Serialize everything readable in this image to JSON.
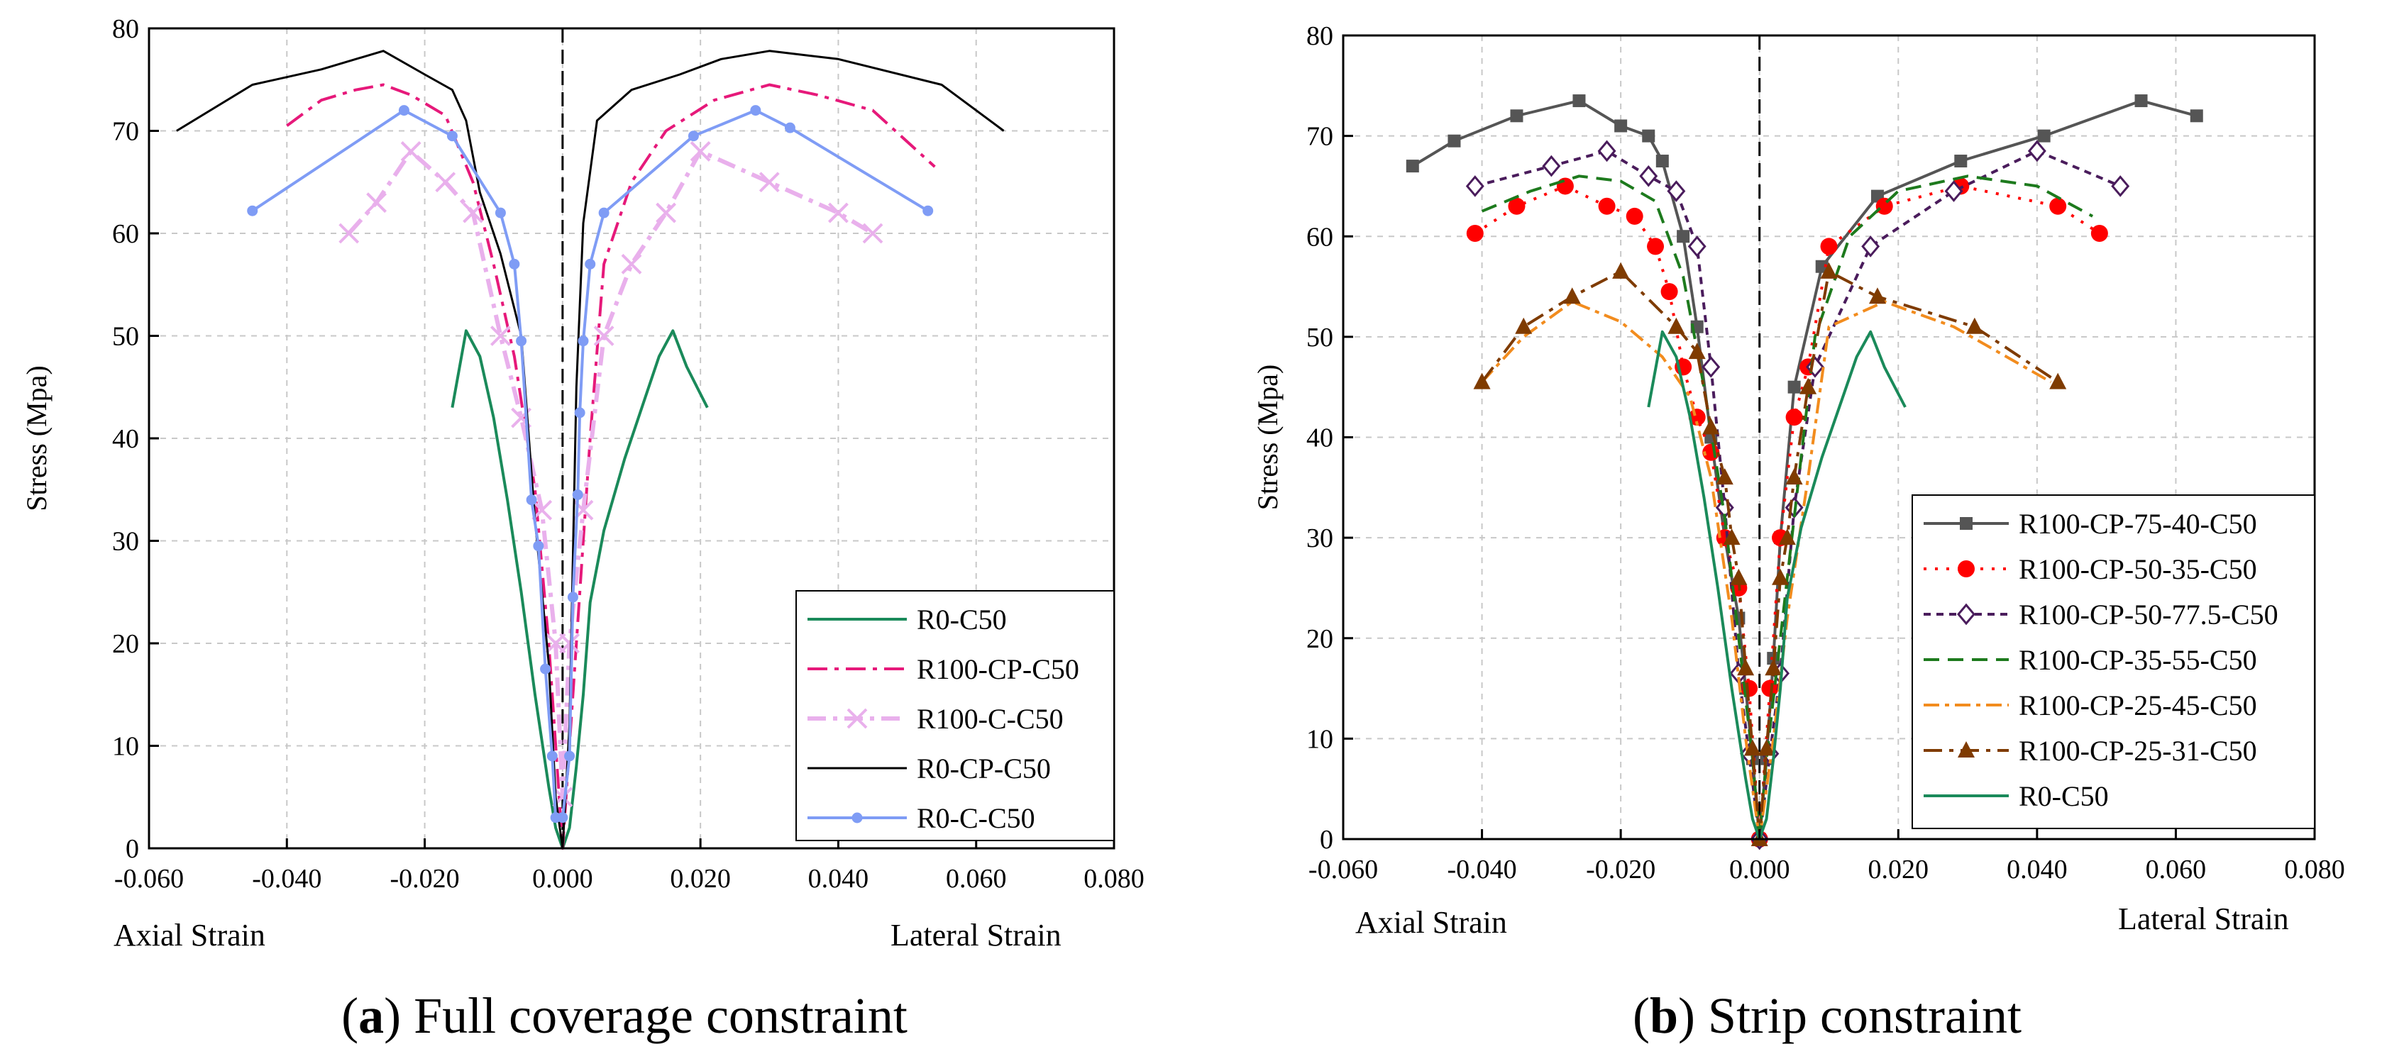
{
  "chart_data": [
    {
      "type": "line",
      "caption_letter": "a",
      "caption_text": ") Full coverage constraint",
      "caption_open": "(",
      "xlabel_left": "Axial Strain",
      "xlabel_right": "Lateral Strain",
      "ylabel": "Stress (Mpa)",
      "xlim": [
        -0.06,
        0.08
      ],
      "ylim": [
        0,
        80
      ],
      "xticks": [
        "-0.060",
        "-0.040",
        "-0.020",
        "0.000",
        "0.020",
        "0.040",
        "0.060",
        "0.080"
      ],
      "yticks": [
        "0",
        "10",
        "20",
        "30",
        "40",
        "50",
        "60",
        "70",
        "80"
      ],
      "series": [
        {
          "name": "R0-C50",
          "color": "#1a8a5a",
          "dash": "",
          "marker": "none",
          "x": [
            -0.016,
            -0.014,
            -0.012,
            -0.01,
            -0.008,
            -0.006,
            -0.004,
            -0.002,
            -0.001,
            0,
            0.001,
            0.002,
            0.003,
            0.004,
            0.006,
            0.009,
            0.012,
            0.014,
            0.016,
            0.018,
            0.021
          ],
          "y": [
            43,
            50.5,
            48,
            42,
            34,
            25,
            15,
            6,
            2,
            0,
            2,
            8,
            15,
            24,
            31,
            38,
            44,
            48,
            50.5,
            47,
            43
          ]
        },
        {
          "name": "R100-CP-C50",
          "color": "#e6197a",
          "dash": "28,10,6,10",
          "marker": "none",
          "x": [
            -0.04,
            -0.035,
            -0.03,
            -0.026,
            -0.022,
            -0.017,
            -0.013,
            -0.01,
            -0.007,
            -0.004,
            -0.002,
            0,
            0.002,
            0.004,
            0.006,
            0.01,
            0.015,
            0.022,
            0.03,
            0.037,
            0.045,
            0.054
          ],
          "y": [
            70.5,
            73,
            74,
            74.5,
            73.5,
            71.5,
            65,
            57,
            48,
            35,
            20,
            0,
            20,
            40,
            57,
            65,
            70,
            73,
            74.5,
            73.5,
            72,
            66.5
          ]
        },
        {
          "name": "R100-C-C50",
          "color": "#e9b0ec",
          "dash": "26,10,6,10",
          "marker": "x",
          "width": 6,
          "x": [
            -0.031,
            -0.027,
            -0.022,
            -0.017,
            -0.013,
            -0.009,
            -0.006,
            -0.003,
            -0.001,
            0,
            0.001,
            0.003,
            0.006,
            0.01,
            0.015,
            0.02,
            0.03,
            0.04,
            0.045
          ],
          "y": [
            60,
            63,
            68,
            65,
            62,
            50,
            42,
            33,
            20,
            5,
            20,
            33,
            50,
            57,
            62,
            68,
            65,
            62,
            60
          ]
        },
        {
          "name": "R0-CP-C50",
          "color": "#000000",
          "dash": "",
          "marker": "none",
          "width": 3,
          "x": [
            -0.056,
            -0.045,
            -0.035,
            -0.026,
            -0.02,
            -0.016,
            -0.014,
            -0.012,
            -0.009,
            -0.006,
            -0.004,
            -0.002,
            -0.001,
            0,
            0.001,
            0.002,
            0.003,
            0.005,
            0.01,
            0.017,
            0.023,
            0.03,
            0.04,
            0.055,
            0.064
          ],
          "y": [
            70,
            74.5,
            76,
            77.8,
            75.5,
            74,
            71,
            64,
            58,
            50,
            32,
            18,
            5,
            0,
            12,
            45,
            61,
            71,
            74,
            75.5,
            77,
            77.8,
            77,
            74.5,
            70
          ]
        },
        {
          "name": "R0-C-C50",
          "color": "#7f9cf5",
          "dash": "",
          "marker": "circle",
          "x": [
            -0.045,
            -0.023,
            -0.016,
            -0.009,
            -0.007,
            -0.006,
            -0.0045,
            -0.0035,
            -0.0025,
            -0.0015,
            -0.001,
            0,
            0.001,
            0.0015,
            0.0022,
            0.0025,
            0.003,
            0.004,
            0.006,
            0.019,
            0.028,
            0.033,
            0.053
          ],
          "y": [
            62.2,
            72,
            69.5,
            62,
            57,
            49.5,
            34,
            29.5,
            17.5,
            9,
            3,
            3,
            9,
            24.5,
            34.5,
            42.5,
            49.5,
            57,
            62,
            69.5,
            72,
            70.3,
            62.2
          ]
        }
      ]
    },
    {
      "type": "line",
      "caption_letter": "b",
      "caption_text": ") Strip constraint",
      "caption_open": "(",
      "xlabel_left": "Axial Strain",
      "xlabel_right": "Lateral Strain",
      "ylabel": "Stress (Mpa)",
      "xlim": [
        -0.06,
        0.08
      ],
      "ylim": [
        0,
        80
      ],
      "xticks": [
        "-0.060",
        "-0.040",
        "-0.020",
        "0.000",
        "0.020",
        "0.040",
        "0.060",
        "0.080"
      ],
      "yticks": [
        "0",
        "10",
        "20",
        "30",
        "40",
        "50",
        "60",
        "70",
        "80"
      ],
      "series": [
        {
          "name": "R100-CP-75-40-C50",
          "color": "#555555",
          "dash": "",
          "marker": "square",
          "x": [
            -0.05,
            -0.044,
            -0.035,
            -0.026,
            -0.02,
            -0.016,
            -0.014,
            -0.011,
            -0.009,
            -0.007,
            -0.005,
            -0.003,
            -0.002,
            -0.001,
            0,
            0.001,
            0.002,
            0.003,
            0.005,
            0.009,
            0.017,
            0.029,
            0.041,
            0.055,
            0.063
          ],
          "y": [
            67,
            69.5,
            72,
            73.5,
            71,
            70,
            67.5,
            60,
            51,
            40,
            30,
            22,
            15,
            8,
            0,
            8,
            18,
            30,
            45,
            57,
            64,
            67.5,
            70,
            73.5,
            72
          ]
        },
        {
          "name": "R100-CP-50-35-C50",
          "color": "#ff0000",
          "dash": "4,12",
          "marker": "dot",
          "x": [
            -0.041,
            -0.035,
            -0.028,
            -0.022,
            -0.018,
            -0.015,
            -0.013,
            -0.011,
            -0.009,
            -0.007,
            -0.005,
            -0.003,
            -0.0015,
            0,
            0.0015,
            0.003,
            0.005,
            0.007,
            0.01,
            0.018,
            0.029,
            0.043,
            0.049
          ],
          "y": [
            60.3,
            63,
            65,
            63,
            62,
            59,
            54.5,
            47,
            42,
            38.5,
            30,
            25,
            15,
            0,
            15,
            30,
            42,
            47,
            59,
            63,
            65,
            63,
            60.3
          ]
        },
        {
          "name": "R100-CP-50-77.5-C50",
          "color": "#4a1c5c",
          "dash": "10,8",
          "marker": "diamond",
          "x": [
            -0.041,
            -0.03,
            -0.022,
            -0.016,
            -0.012,
            -0.009,
            -0.007,
            -0.005,
            -0.003,
            -0.0015,
            0,
            0.0015,
            0.003,
            0.005,
            0.008,
            0.016,
            0.028,
            0.04,
            0.052
          ],
          "y": [
            65,
            67,
            68.5,
            66,
            64.5,
            59,
            47,
            33,
            16.5,
            8.5,
            0,
            8.5,
            16.5,
            33,
            47,
            59,
            64.5,
            68.5,
            65
          ]
        },
        {
          "name": "R100-CP-35-55-C50",
          "color": "#1d7a1d",
          "dash": "22,12",
          "marker": "none",
          "x": [
            -0.04,
            -0.033,
            -0.026,
            -0.02,
            -0.015,
            -0.011,
            -0.008,
            -0.005,
            -0.003,
            -0.001,
            0,
            0.001,
            0.003,
            0.005,
            0.008,
            0.013,
            0.02,
            0.03,
            0.04,
            0.048
          ],
          "y": [
            62.5,
            64.5,
            66,
            65.5,
            63.5,
            56,
            45,
            32,
            20,
            8,
            0,
            8,
            20,
            32,
            50,
            60,
            64.5,
            66,
            65,
            62
          ]
        },
        {
          "name": "R100-CP-25-45-C50",
          "color": "#f28c1e",
          "dash": "22,8,6,8",
          "marker": "none",
          "x": [
            -0.04,
            -0.034,
            -0.027,
            -0.02,
            -0.014,
            -0.01,
            -0.007,
            -0.004,
            -0.002,
            0,
            0.002,
            0.004,
            0.007,
            0.01,
            0.018,
            0.028,
            0.042
          ],
          "y": [
            45.5,
            50,
            53.5,
            51.5,
            48,
            44,
            36,
            22,
            10,
            0,
            10,
            22,
            36,
            51,
            53.5,
            51,
            45.5
          ]
        },
        {
          "name": "R100-CP-25-31-C50",
          "color": "#7f3b00",
          "dash": "26,10,6,10",
          "marker": "triangle",
          "x": [
            -0.04,
            -0.034,
            -0.027,
            -0.02,
            -0.012,
            -0.009,
            -0.007,
            -0.005,
            -0.004,
            -0.003,
            -0.002,
            -0.001,
            0,
            0.001,
            0.002,
            0.003,
            0.004,
            0.005,
            0.007,
            0.01,
            0.017,
            0.031,
            0.043
          ],
          "y": [
            45.5,
            51,
            54,
            56.5,
            51,
            48.5,
            41,
            36,
            30,
            26,
            17,
            9,
            0,
            9,
            17,
            26,
            30,
            36,
            45,
            56.5,
            54,
            51,
            45.5
          ]
        },
        {
          "name": "R0-C50",
          "color": "#1a8a5a",
          "dash": "",
          "marker": "none",
          "x": [
            -0.016,
            -0.014,
            -0.012,
            -0.01,
            -0.008,
            -0.006,
            -0.004,
            -0.002,
            -0.001,
            0,
            0.001,
            0.002,
            0.003,
            0.004,
            0.006,
            0.009,
            0.012,
            0.014,
            0.016,
            0.018,
            0.021
          ],
          "y": [
            43,
            50.5,
            48,
            42,
            34,
            25,
            15,
            6,
            2,
            0,
            2,
            8,
            15,
            24,
            31,
            38,
            44,
            48,
            50.5,
            47,
            43
          ]
        }
      ]
    }
  ]
}
